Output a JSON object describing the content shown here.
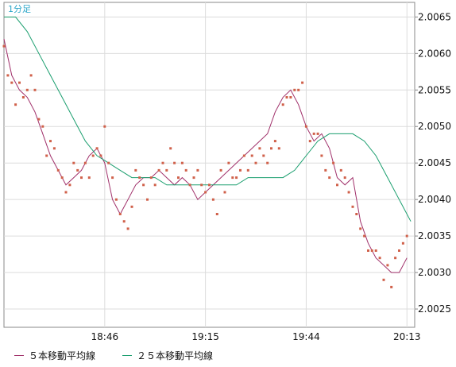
{
  "chart_data": {
    "type": "line",
    "period_label": "1分足",
    "x_tick_labels": [
      "18:46",
      "19:15",
      "19:44",
      "20:13"
    ],
    "y_ticks": [
      2.0025,
      2.003,
      2.0035,
      2.004,
      2.0045,
      2.005,
      2.0055,
      2.006,
      2.0065
    ],
    "y_tick_labels": [
      "2.0025",
      "2.0030",
      "2.0035",
      "2.0040",
      "2.0045",
      "2.0050",
      "2.0055",
      "2.0060",
      "2.0065"
    ],
    "ylim": [
      2.00225,
      2.0067
    ],
    "xlim": [
      0,
      106
    ],
    "x_tick_positions": [
      26,
      52,
      78,
      104
    ],
    "grid": true,
    "legend_position": "bottom-left",
    "series": [
      {
        "name": "５本移動平均線",
        "color": "#a0306a",
        "style": "line",
        "x": [
          0,
          2,
          4,
          6,
          8,
          10,
          12,
          14,
          16,
          18,
          20,
          22,
          24,
          26,
          28,
          30,
          32,
          34,
          36,
          38,
          40,
          42,
          44,
          46,
          48,
          50,
          52,
          54,
          56,
          58,
          60,
          62,
          64,
          66,
          68,
          70,
          72,
          74,
          76,
          78,
          80,
          82,
          84,
          86,
          88,
          90,
          92,
          94,
          96,
          98,
          100,
          102,
          104
        ],
        "values": [
          2.0062,
          2.0057,
          2.0055,
          2.0054,
          2.0052,
          2.0049,
          2.0046,
          2.0044,
          2.0042,
          2.0043,
          2.0044,
          2.0046,
          2.0047,
          2.0045,
          2.004,
          2.0038,
          2.004,
          2.0042,
          2.0043,
          2.0043,
          2.0044,
          2.0043,
          2.0042,
          2.0043,
          2.0042,
          2.004,
          2.0041,
          2.0042,
          2.0043,
          2.0044,
          2.0045,
          2.0046,
          2.0047,
          2.0048,
          2.0049,
          2.0052,
          2.0054,
          2.0055,
          2.0053,
          2.005,
          2.0048,
          2.0049,
          2.0047,
          2.0043,
          2.0042,
          2.0043,
          2.0037,
          2.0034,
          2.0032,
          2.0031,
          2.003,
          2.003,
          2.0032
        ]
      },
      {
        "name": "２５本移動平均線",
        "color": "#1a9e6e",
        "style": "line",
        "x": [
          0,
          3,
          6,
          9,
          12,
          15,
          18,
          21,
          24,
          27,
          30,
          33,
          36,
          39,
          42,
          45,
          48,
          51,
          54,
          57,
          60,
          63,
          66,
          69,
          72,
          75,
          78,
          81,
          84,
          87,
          90,
          93,
          96,
          99,
          102,
          105
        ],
        "values": [
          2.0065,
          2.0065,
          2.0063,
          2.006,
          2.0057,
          2.0054,
          2.0051,
          2.0048,
          2.0046,
          2.0045,
          2.0044,
          2.0043,
          2.0043,
          2.0043,
          2.0042,
          2.0042,
          2.0042,
          2.0042,
          2.0042,
          2.0042,
          2.0042,
          2.0043,
          2.0043,
          2.0043,
          2.0043,
          2.0044,
          2.0046,
          2.0048,
          2.0049,
          2.0049,
          2.0049,
          2.0048,
          2.0046,
          2.0043,
          2.004,
          2.0037
        ]
      },
      {
        "name": "",
        "color": "#d0604a",
        "style": "points",
        "x": [
          0,
          1,
          2,
          3,
          4,
          5,
          6,
          7,
          8,
          9,
          10,
          11,
          12,
          13,
          14,
          15,
          16,
          17,
          18,
          19,
          20,
          21,
          22,
          23,
          24,
          25,
          26,
          27,
          28,
          29,
          30,
          31,
          32,
          33,
          34,
          35,
          36,
          37,
          38,
          39,
          40,
          41,
          42,
          43,
          44,
          45,
          46,
          47,
          48,
          49,
          50,
          51,
          52,
          53,
          54,
          55,
          56,
          57,
          58,
          59,
          60,
          61,
          62,
          63,
          64,
          65,
          66,
          67,
          68,
          69,
          70,
          71,
          72,
          73,
          74,
          75,
          76,
          77,
          78,
          79,
          80,
          81,
          82,
          83,
          84,
          85,
          86,
          87,
          88,
          89,
          90,
          91,
          92,
          93,
          94,
          95,
          96,
          97,
          98,
          99,
          100,
          101,
          102,
          103,
          104
        ],
        "values": [
          2.0061,
          2.0057,
          2.0056,
          2.0053,
          2.0056,
          2.0054,
          2.0055,
          2.0057,
          2.0055,
          2.0051,
          2.005,
          2.0046,
          2.0048,
          2.0047,
          2.0044,
          2.0043,
          2.0041,
          2.0042,
          2.0045,
          2.0044,
          2.0043,
          2.0045,
          2.0043,
          2.0046,
          2.0047,
          2.0046,
          2.005,
          2.0045,
          2.0043,
          2.004,
          2.0038,
          2.0037,
          2.0036,
          2.0039,
          2.0044,
          2.0043,
          2.0042,
          2.004,
          2.0043,
          2.0042,
          2.0044,
          2.0045,
          2.0044,
          2.0047,
          2.0045,
          2.0043,
          2.0045,
          2.0044,
          2.0042,
          2.0043,
          2.0044,
          2.0042,
          2.0041,
          2.0042,
          2.004,
          2.0038,
          2.0044,
          2.0041,
          2.0045,
          2.0043,
          2.0043,
          2.0044,
          2.0046,
          2.0044,
          2.0046,
          2.0045,
          2.0047,
          2.0046,
          2.0045,
          2.0047,
          2.0048,
          2.0047,
          2.0053,
          2.0054,
          2.0054,
          2.0055,
          2.0055,
          2.0056,
          2.005,
          2.0048,
          2.0049,
          2.0049,
          2.0046,
          2.0044,
          2.0043,
          2.0045,
          2.0042,
          2.0044,
          2.0043,
          2.0041,
          2.0039,
          2.0038,
          2.0036,
          2.0035,
          2.0033,
          2.0033,
          2.0033,
          2.0032,
          2.0029,
          2.0031,
          2.0028,
          2.0032,
          2.0033,
          2.0034,
          2.0035
        ]
      }
    ]
  }
}
